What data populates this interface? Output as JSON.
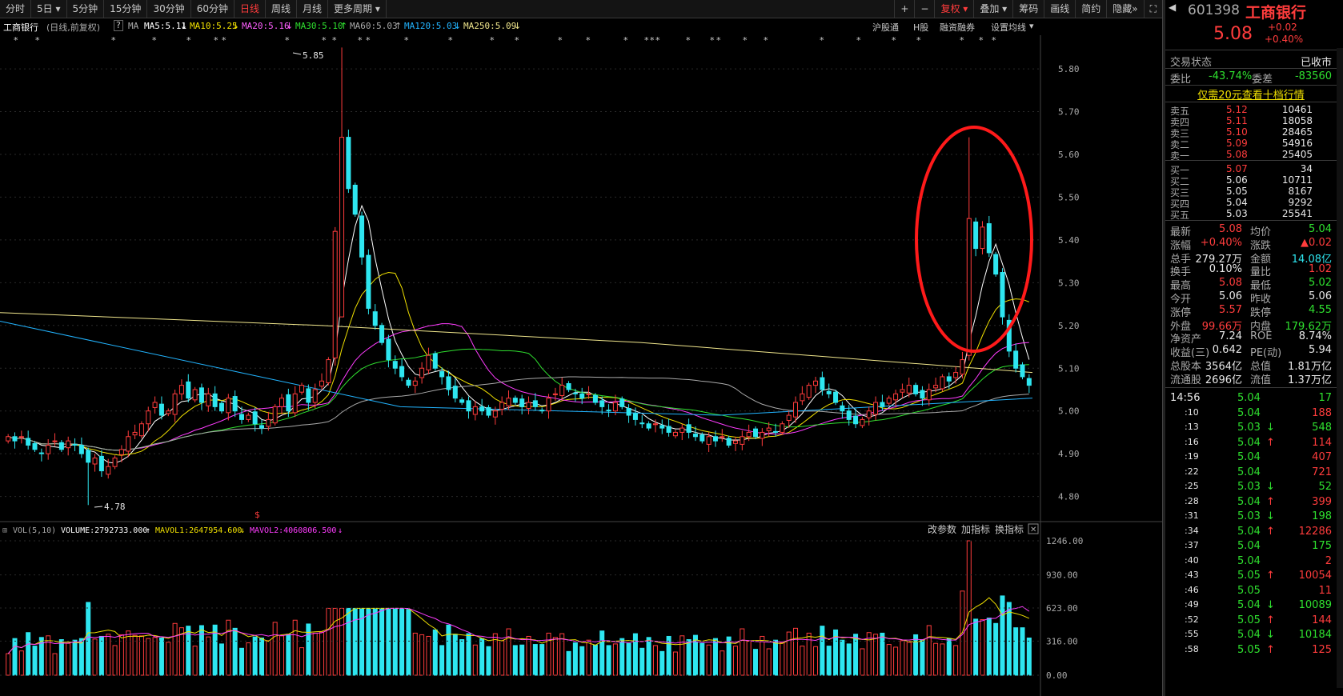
{
  "toolbar": {
    "tabs": [
      "分时",
      "5日",
      "5分钟",
      "15分钟",
      "30分钟",
      "60分钟",
      "日线",
      "周线",
      "月线",
      "更多周期"
    ],
    "right": [
      "+",
      "−",
      "复权",
      "叠加",
      "筹码",
      "画线",
      "简约",
      "隐藏"
    ]
  },
  "info": {
    "name": "工商银行",
    "mode": "(日线,前复权)",
    "ma": "MA",
    "ma5": "MA5:5.11",
    "ma10": "MA10:5.25",
    "ma20": "MA20:5.16",
    "ma30": "MA30:5.10",
    "ma60": "MA60:5.03",
    "ma120": "MA120:5.03",
    "ma250": "MA250:5.09",
    "links": [
      "沪股通",
      "H股",
      "融资融券",
      "设置均线"
    ]
  },
  "volinfo": {
    "title": "VOL(5,10)",
    "volume": "VOLUME:2792733.000",
    "mavol1": "MAVOL1:2647954.600",
    "mavol2": "MAVOL2:4060806.500",
    "actions": [
      "改参数",
      "加指标",
      "换指标"
    ]
  },
  "colors": {
    "up": "#ff3c3c",
    "down": "#2ee6f0",
    "ma5": "#ffffff",
    "ma10": "#f0e000",
    "ma20": "#ff3cff",
    "ma30": "#2fe02f",
    "ma60": "#aaaaaa",
    "ma120": "#22b4ff",
    "ma250": "#f0e68c"
  },
  "chart_data": {
    "type": "candlestick",
    "ylim": [
      4.76,
      5.86
    ],
    "yticks": [
      "5.80",
      "5.70",
      "5.60",
      "5.50",
      "5.40",
      "5.30",
      "5.20",
      "5.10",
      "5.00",
      "4.90",
      "4.80"
    ],
    "vol_ylim": [
      0,
      1246
    ],
    "vol_ticks": [
      "1246.00",
      "930.00",
      "623.00",
      "316.00",
      "0.00"
    ],
    "high_label": "5.85",
    "low_label": "4.78",
    "closes": [
      4.94,
      4.93,
      4.94,
      4.92,
      4.91,
      4.9,
      4.92,
      4.93,
      4.91,
      4.93,
      4.92,
      4.9,
      4.88,
      4.89,
      4.86,
      4.87,
      4.89,
      4.91,
      4.94,
      4.95,
      4.97,
      5.0,
      5.02,
      4.99,
      5.0,
      5.04,
      5.06,
      5.03,
      5.05,
      5.02,
      5.04,
      5.01,
      5.0,
      5.03,
      5.0,
      4.98,
      4.99,
      4.97,
      4.96,
      4.98,
      5.01,
      5.03,
      5.0,
      5.04,
      5.06,
      5.02,
      5.05,
      5.07,
      5.12,
      5.42,
      5.64,
      5.52,
      5.46,
      5.36,
      5.24,
      5.2,
      5.16,
      5.12,
      5.1,
      5.08,
      5.06,
      5.07,
      5.1,
      5.13,
      5.1,
      5.08,
      5.05,
      5.03,
      5.02,
      5.0,
      5.01,
      5.0,
      4.99,
      5.0,
      5.02,
      5.03,
      5.02,
      5.01,
      5.02,
      5.01,
      5.0,
      5.03,
      5.04,
      5.06,
      5.05,
      5.04,
      5.03,
      5.04,
      5.02,
      5.01,
      5.0,
      5.02,
      5.01,
      4.99,
      4.98,
      4.97,
      4.96,
      4.97,
      4.96,
      4.95,
      4.95,
      4.96,
      4.95,
      4.94,
      4.93,
      4.94,
      4.93,
      4.94,
      4.92,
      4.93,
      4.94,
      4.95,
      4.94,
      4.95,
      4.96,
      4.95,
      4.97,
      4.99,
      5.02,
      5.04,
      5.06,
      5.07,
      5.05,
      5.04,
      5.02,
      5.0,
      4.98,
      4.97,
      4.98,
      5.0,
      5.02,
      5.01,
      5.03,
      5.04,
      5.05,
      5.06,
      5.04,
      5.03,
      5.05,
      5.06,
      5.08,
      5.07,
      5.09,
      5.12,
      5.45,
      5.38,
      5.43,
      5.37,
      5.32,
      5.22,
      5.14,
      5.1,
      5.08,
      5.06
    ]
  },
  "side": {
    "code": "601398",
    "name": "工商银行",
    "price": "5.08",
    "chg": "+0.02",
    "pct": "+0.40%",
    "status_label": "交易状态",
    "status": "已收市",
    "weibi_label": "委比",
    "weibi": "-43.74%",
    "weicha_label": "委差",
    "weicha": "-83560",
    "promo": "仅需20元查看十档行情",
    "asks": [
      {
        "label": "卖五",
        "price": "5.12",
        "vol": "10461"
      },
      {
        "label": "卖四",
        "price": "5.11",
        "vol": "18058"
      },
      {
        "label": "卖三",
        "price": "5.10",
        "vol": "28465"
      },
      {
        "label": "卖二",
        "price": "5.09",
        "vol": "54916"
      },
      {
        "label": "卖一",
        "price": "5.08",
        "vol": "25405"
      }
    ],
    "bids": [
      {
        "label": "买一",
        "price": "5.07",
        "vol": "34"
      },
      {
        "label": "买二",
        "price": "5.06",
        "vol": "10711"
      },
      {
        "label": "买三",
        "price": "5.05",
        "vol": "8167"
      },
      {
        "label": "买四",
        "price": "5.04",
        "vol": "9292"
      },
      {
        "label": "买五",
        "price": "5.03",
        "vol": "25541"
      }
    ],
    "stats": [
      {
        "l1": "最新",
        "v1": "5.08",
        "c1": "red",
        "l2": "均价",
        "v2": "5.04",
        "c2": "green"
      },
      {
        "l1": "涨幅",
        "v1": "+0.40%",
        "c1": "red",
        "l2": "涨跌",
        "v2": "▲0.02",
        "c2": "red"
      },
      {
        "l1": "总手",
        "v1": "279.27万",
        "c1": "white",
        "l2": "金额",
        "v2": "14.08亿",
        "c2": "cyan"
      },
      {
        "l1": "换手",
        "v1": "0.10%",
        "c1": "white",
        "l2": "量比",
        "v2": "1.02",
        "c2": "red"
      },
      {
        "l1": "最高",
        "v1": "5.08",
        "c1": "red",
        "l2": "最低",
        "v2": "5.02",
        "c2": "green"
      },
      {
        "l1": "今开",
        "v1": "5.06",
        "c1": "white",
        "l2": "昨收",
        "v2": "5.06",
        "c2": "white"
      },
      {
        "l1": "涨停",
        "v1": "5.57",
        "c1": "red",
        "l2": "跌停",
        "v2": "4.55",
        "c2": "green"
      },
      {
        "l1": "外盘",
        "v1": "99.66万",
        "c1": "red",
        "l2": "内盘",
        "v2": "179.62万",
        "c2": "green"
      },
      {
        "l1": "净资产",
        "v1": "7.24",
        "c1": "white",
        "l2": "ROE",
        "v2": "8.74%",
        "c2": "white"
      },
      {
        "l1": "收益(三)",
        "v1": "0.642",
        "c1": "white",
        "l2": "PE(动)",
        "v2": "5.94",
        "c2": "white"
      },
      {
        "l1": "总股本",
        "v1": "3564亿",
        "c1": "white",
        "l2": "总值",
        "v2": "1.81万亿",
        "c2": "white"
      },
      {
        "l1": "流通股",
        "v1": "2696亿",
        "c1": "white",
        "l2": "流值",
        "v2": "1.37万亿",
        "c2": "white"
      }
    ],
    "ticks": [
      {
        "t": "14:56",
        "p": "5.04",
        "v": "17",
        "c": "green",
        "vc": "green",
        "a": ""
      },
      {
        "t": ":10",
        "p": "5.04",
        "v": "188",
        "c": "green",
        "vc": "red",
        "a": ""
      },
      {
        "t": ":13",
        "p": "5.03",
        "v": "548",
        "c": "green",
        "vc": "green",
        "a": "↓"
      },
      {
        "t": ":16",
        "p": "5.04",
        "v": "114",
        "c": "green",
        "vc": "red",
        "a": "↑"
      },
      {
        "t": ":19",
        "p": "5.04",
        "v": "407",
        "c": "green",
        "vc": "red",
        "a": ""
      },
      {
        "t": ":22",
        "p": "5.04",
        "v": "721",
        "c": "green",
        "vc": "red",
        "a": ""
      },
      {
        "t": ":25",
        "p": "5.03",
        "v": "52",
        "c": "green",
        "vc": "green",
        "a": "↓"
      },
      {
        "t": ":28",
        "p": "5.04",
        "v": "399",
        "c": "green",
        "vc": "red",
        "a": "↑"
      },
      {
        "t": ":31",
        "p": "5.03",
        "v": "198",
        "c": "green",
        "vc": "green",
        "a": "↓"
      },
      {
        "t": ":34",
        "p": "5.04",
        "v": "12286",
        "c": "green",
        "vc": "red",
        "a": "↑"
      },
      {
        "t": ":37",
        "p": "5.04",
        "v": "175",
        "c": "green",
        "vc": "green",
        "a": ""
      },
      {
        "t": ":40",
        "p": "5.04",
        "v": "2",
        "c": "green",
        "vc": "red",
        "a": ""
      },
      {
        "t": ":43",
        "p": "5.05",
        "v": "10054",
        "c": "green",
        "vc": "red",
        "a": "↑"
      },
      {
        "t": ":46",
        "p": "5.05",
        "v": "11",
        "c": "green",
        "vc": "red",
        "a": ""
      },
      {
        "t": ":49",
        "p": "5.04",
        "v": "10089",
        "c": "green",
        "vc": "green",
        "a": "↓"
      },
      {
        "t": ":52",
        "p": "5.05",
        "v": "144",
        "c": "green",
        "vc": "red",
        "a": "↑"
      },
      {
        "t": ":55",
        "p": "5.04",
        "v": "10184",
        "c": "green",
        "vc": "green",
        "a": "↓"
      },
      {
        "t": ":58",
        "p": "5.05",
        "v": "125",
        "c": "green",
        "vc": "red",
        "a": "↑"
      }
    ]
  }
}
